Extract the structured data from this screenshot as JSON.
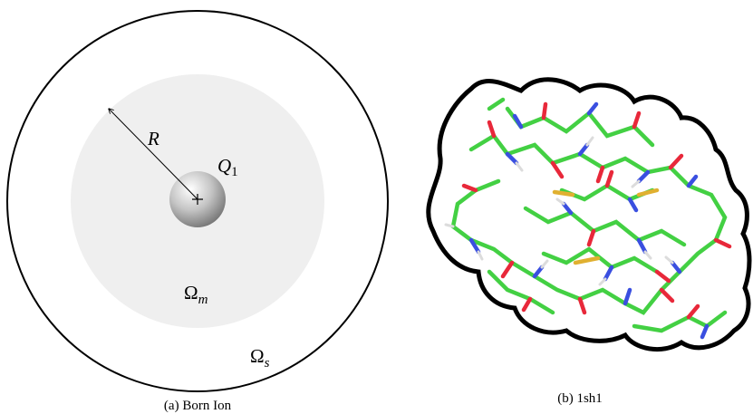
{
  "panel_a": {
    "radius_label": "R",
    "charge_label": {
      "base": "Q",
      "sub": "1"
    },
    "inner_region": {
      "base": "Ω",
      "sub": "m"
    },
    "outer_region": {
      "base": "Ω",
      "sub": "s"
    },
    "caption": "(a) Born Ion"
  },
  "panel_b": {
    "caption": "(b) 1sh1"
  }
}
